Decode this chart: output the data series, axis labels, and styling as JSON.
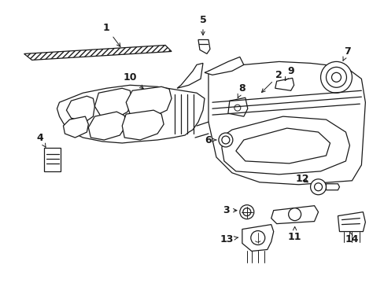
{
  "bg_color": "#ffffff",
  "line_color": "#1a1a1a",
  "figsize": [
    4.89,
    3.6
  ],
  "dpi": 100
}
